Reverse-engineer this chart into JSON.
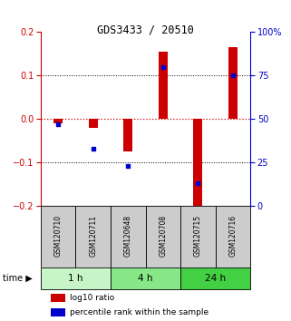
{
  "title": "GDS3433 / 20510",
  "samples": [
    "GSM120710",
    "GSM120711",
    "GSM120648",
    "GSM120708",
    "GSM120715",
    "GSM120716"
  ],
  "time_groups": [
    {
      "label": "1 h",
      "samples": [
        0,
        1
      ],
      "color": "#c8f5c8"
    },
    {
      "label": "4 h",
      "samples": [
        2,
        3
      ],
      "color": "#88e888"
    },
    {
      "label": "24 h",
      "samples": [
        4,
        5
      ],
      "color": "#44d044"
    }
  ],
  "log10_ratio": [
    -0.01,
    -0.02,
    -0.075,
    0.155,
    -0.21,
    0.165
  ],
  "percentile_rank": [
    47,
    33,
    23,
    80,
    13,
    75
  ],
  "ylim_left": [
    -0.2,
    0.2
  ],
  "ylim_right": [
    0,
    100
  ],
  "yticks_left": [
    -0.2,
    -0.1,
    0,
    0.1,
    0.2
  ],
  "yticks_right": [
    0,
    25,
    50,
    75,
    100
  ],
  "bar_color": "#cc0000",
  "dot_color": "#0000cc",
  "zero_line_color": "#cc0000",
  "sample_box_color": "#cccccc",
  "left_axis_color": "#cc0000",
  "right_axis_color": "#0000cc",
  "legend_bar_label": "log10 ratio",
  "legend_dot_label": "percentile rank within the sample",
  "bar_width": 0.25
}
